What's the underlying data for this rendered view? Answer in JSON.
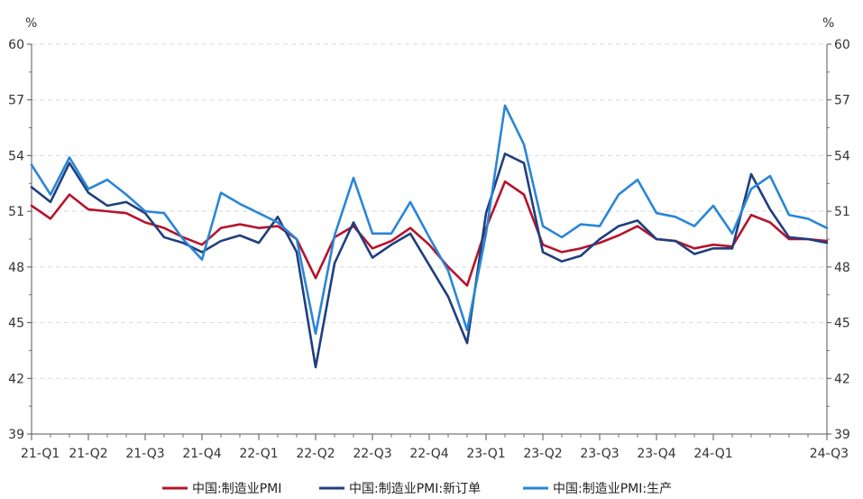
{
  "chart_data": {
    "type": "line",
    "title": "",
    "xlabel": "",
    "ylabel_left": "%",
    "ylabel_right": "%",
    "ylim": [
      39,
      60
    ],
    "yticks": [
      39,
      42,
      45,
      48,
      51,
      54,
      57,
      60
    ],
    "grid": "horizontal dashed",
    "legend_position": "bottom",
    "x": [
      "2021-01",
      "2021-02",
      "2021-03",
      "2021-04",
      "2021-05",
      "2021-06",
      "2021-07",
      "2021-08",
      "2021-09",
      "2021-10",
      "2021-11",
      "2021-12",
      "2022-01",
      "2022-02",
      "2022-03",
      "2022-04",
      "2022-05",
      "2022-06",
      "2022-07",
      "2022-08",
      "2022-09",
      "2022-10",
      "2022-11",
      "2022-12",
      "2023-01",
      "2023-02",
      "2023-03",
      "2023-04",
      "2023-05",
      "2023-06",
      "2023-07",
      "2023-08",
      "2023-09",
      "2023-10",
      "2023-11",
      "2023-12",
      "2024-01",
      "2024-02",
      "2024-03",
      "2024-04",
      "2024-05",
      "2024-06",
      "2024-07"
    ],
    "x_tick_labels": [
      {
        "index": 0,
        "label": "21-Q1"
      },
      {
        "index": 3,
        "label": "21-Q2"
      },
      {
        "index": 6,
        "label": "21-Q3"
      },
      {
        "index": 9,
        "label": "21-Q4"
      },
      {
        "index": 12,
        "label": "22-Q1"
      },
      {
        "index": 15,
        "label": "22-Q2"
      },
      {
        "index": 18,
        "label": "22-Q3"
      },
      {
        "index": 21,
        "label": "22-Q4"
      },
      {
        "index": 24,
        "label": "23-Q1"
      },
      {
        "index": 27,
        "label": "23-Q2"
      },
      {
        "index": 30,
        "label": "23-Q3"
      },
      {
        "index": 33,
        "label": "23-Q4"
      },
      {
        "index": 36,
        "label": "24-Q1"
      },
      {
        "index": 42,
        "label": "24-Q3"
      }
    ],
    "series": [
      {
        "name": "中国:制造业PMI",
        "color": "#b5142b",
        "values": [
          51.3,
          50.6,
          51.9,
          51.1,
          51.0,
          50.9,
          50.4,
          50.1,
          49.6,
          49.2,
          50.1,
          50.3,
          50.1,
          50.2,
          49.5,
          47.4,
          49.6,
          50.2,
          49.0,
          49.4,
          50.1,
          49.2,
          48.0,
          47.0,
          50.1,
          52.6,
          51.9,
          49.2,
          48.8,
          49.0,
          49.3,
          49.7,
          50.2,
          49.5,
          49.4,
          49.0,
          49.2,
          49.1,
          50.8,
          50.4,
          49.5,
          49.5,
          49.4
        ]
      },
      {
        "name": "中国:制造业PMI:新订单",
        "color": "#1f3f7f",
        "values": [
          52.3,
          51.5,
          53.6,
          52.0,
          51.3,
          51.5,
          50.9,
          49.6,
          49.3,
          48.8,
          49.4,
          49.7,
          49.3,
          50.7,
          48.8,
          42.6,
          48.2,
          50.4,
          48.5,
          49.2,
          49.8,
          48.1,
          46.4,
          43.9,
          50.9,
          54.1,
          53.6,
          48.8,
          48.3,
          48.6,
          49.5,
          50.2,
          50.5,
          49.5,
          49.4,
          48.7,
          49.0,
          49.0,
          53.0,
          51.1,
          49.6,
          49.5,
          49.3
        ]
      },
      {
        "name": "中国:制造业PMI:生产",
        "color": "#2a86d6",
        "values": [
          53.5,
          51.9,
          53.9,
          52.2,
          52.7,
          51.9,
          51.0,
          50.9,
          49.5,
          48.4,
          52.0,
          51.4,
          50.9,
          50.4,
          49.5,
          44.4,
          49.7,
          52.8,
          49.8,
          49.8,
          51.5,
          49.6,
          47.8,
          44.6,
          49.8,
          56.7,
          54.6,
          50.2,
          49.6,
          50.3,
          50.2,
          51.9,
          52.7,
          50.9,
          50.7,
          50.2,
          51.3,
          49.8,
          52.2,
          52.9,
          50.8,
          50.6,
          50.1
        ]
      }
    ]
  }
}
